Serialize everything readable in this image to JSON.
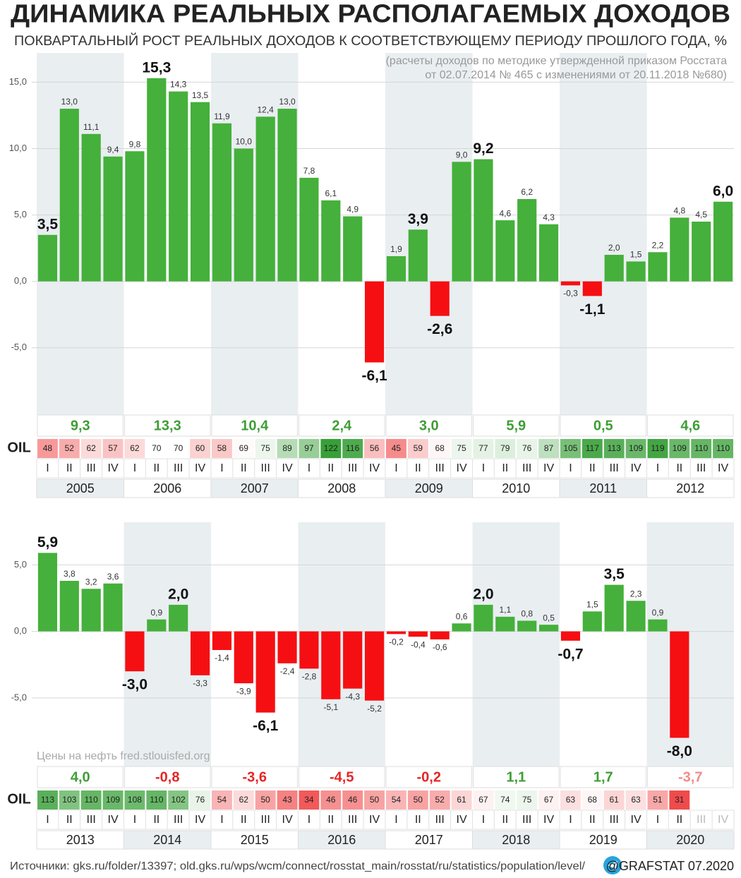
{
  "chart_data": [
    {
      "type": "bar",
      "title": "ДИНАМИКА РЕАЛЬНЫХ РАСПОЛАГАЕМЫХ ДОХОДОВ",
      "subtitle": "ПОКВАРТАЛЬНЫЙ РОСТ РЕАЛЬНЫХ ДОХОДОВ К СООТВЕТСТВУЮЩЕМУ ПЕРИОДУ ПРОШЛОГО ГОДА, %",
      "note": [
        "(расчеты доходов по методике утвержденной приказом Росстата",
        "от 02.07.2014 № 465 с изменениями от 20.11.2018 №680)"
      ],
      "years": [
        "2005",
        "2006",
        "2007",
        "2008",
        "2009",
        "2010",
        "2011",
        "2012"
      ],
      "categories": [
        "I",
        "II",
        "III",
        "IV",
        "I",
        "II",
        "III",
        "IV",
        "I",
        "II",
        "III",
        "IV",
        "I",
        "II",
        "III",
        "IV",
        "I",
        "II",
        "III",
        "IV",
        "I",
        "II",
        "III",
        "IV",
        "I",
        "II",
        "III",
        "IV",
        "I",
        "II",
        "III",
        "IV"
      ],
      "values": [
        3.5,
        13.0,
        11.1,
        9.4,
        9.8,
        15.3,
        14.3,
        13.5,
        11.9,
        10.0,
        12.4,
        13.0,
        7.8,
        6.1,
        4.9,
        -6.1,
        1.9,
        3.9,
        -2.6,
        9.0,
        9.2,
        4.6,
        6.2,
        4.3,
        -0.3,
        -1.1,
        2.0,
        1.5,
        2.2,
        4.8,
        4.5,
        6.0
      ],
      "value_labels": [
        "3,5",
        "13,0",
        "11,1",
        "9,4",
        "9,8",
        "15,3",
        "14,3",
        "13,5",
        "11,9",
        "10,0",
        "12,4",
        "13,0",
        "7,8",
        "6,1",
        "4,9",
        "-6,1",
        "1,9",
        "3,9",
        "-2,6",
        "9,0",
        "9,2",
        "4,6",
        "6,2",
        "4,3",
        "-0,3",
        "-1,1",
        "2,0",
        "1,5",
        "2,2",
        "4,8",
        "4,5",
        "6,0"
      ],
      "large_value_labels": [
        0,
        5,
        15,
        17,
        18,
        20,
        25,
        31
      ],
      "color": "#45b03b",
      "negative_color": "#f50f12",
      "annual_values": [
        9.3,
        13.3,
        10.4,
        2.4,
        3.0,
        5.9,
        0.5,
        4.6
      ],
      "annual_value_labels": [
        "9,3",
        "13,3",
        "10,4",
        "2,4",
        "3,0",
        "5,9",
        "0,5",
        "4,6"
      ],
      "oil_label": "OIL",
      "oil_prices": [
        48,
        52,
        62,
        57,
        62,
        70,
        70,
        60,
        58,
        69,
        75,
        89,
        97,
        122,
        116,
        56,
        45,
        59,
        68,
        75,
        77,
        79,
        76,
        87,
        105,
        117,
        113,
        109,
        119,
        109,
        110,
        110
      ],
      "ylim": [
        -9.9,
        17.2
      ],
      "yticks": [
        {
          "value": -5,
          "label": "-5,0"
        },
        {
          "value": 0,
          "label": "0,0"
        },
        {
          "value": 5,
          "label": "5,0"
        },
        {
          "value": 10,
          "label": "10,0"
        },
        {
          "value": 15,
          "label": "15,0"
        }
      ],
      "grid": true
    },
    {
      "type": "bar",
      "oil_source": "Цены на нефть fred.stlouisfed.org",
      "years": [
        "2013",
        "2014",
        "2015",
        "2016",
        "2017",
        "2018",
        "2019",
        "2020"
      ],
      "categories": [
        "I",
        "II",
        "III",
        "IV",
        "I",
        "II",
        "III",
        "IV",
        "I",
        "II",
        "III",
        "IV",
        "I",
        "II",
        "III",
        "IV",
        "I",
        "II",
        "III",
        "IV",
        "I",
        "II",
        "III",
        "IV",
        "I",
        "II",
        "III",
        "IV",
        "I",
        "II",
        "III",
        "IV"
      ],
      "values": [
        5.9,
        3.8,
        3.2,
        3.6,
        -3.0,
        0.9,
        2.0,
        -3.3,
        -1.4,
        -3.9,
        -6.1,
        -2.4,
        -2.8,
        -5.1,
        -4.3,
        -5.2,
        -0.2,
        -0.4,
        -0.6,
        0.6,
        2.0,
        1.1,
        0.8,
        0.5,
        -0.7,
        1.5,
        3.5,
        2.3,
        0.9,
        -8.0,
        null,
        null
      ],
      "value_labels": [
        "5,9",
        "3,8",
        "3,2",
        "3,6",
        "-3,0",
        "0,9",
        "2,0",
        "-3,3",
        "-1,4",
        "-3,9",
        "-6,1",
        "-2,4",
        "-2,8",
        "-5,1",
        "-4,3",
        "-5,2",
        "-0,2",
        "-0,4",
        "-0,6",
        "0,6",
        "2,0",
        "1,1",
        "0,8",
        "0,5",
        "-0,7",
        "1,5",
        "3,5",
        "2,3",
        "0,9",
        "-8,0",
        null,
        null
      ],
      "large_value_labels": [
        0,
        4,
        6,
        10,
        20,
        24,
        26,
        29
      ],
      "color": "#45b03b",
      "negative_color": "#f50f12",
      "annual_values": [
        4.0,
        -0.8,
        -3.6,
        -4.5,
        -0.2,
        1.1,
        1.7,
        -3.7
      ],
      "annual_value_labels": [
        "4,0",
        "-0,8",
        "-3,6",
        "-4,5",
        "-0,2",
        "1,1",
        "1,7",
        "-3,7"
      ],
      "oil_label": "OIL",
      "oil_prices": [
        113,
        103,
        110,
        109,
        108,
        110,
        102,
        76,
        54,
        62,
        50,
        43,
        34,
        46,
        46,
        50,
        54,
        50,
        52,
        61,
        67,
        74,
        75,
        67,
        63,
        68,
        61,
        63,
        51,
        31,
        null,
        null
      ],
      "ylim": [
        -10.1,
        8.2
      ],
      "yticks": [
        {
          "value": -5,
          "label": "-5,0"
        },
        {
          "value": 0,
          "label": "0,0"
        },
        {
          "value": 5,
          "label": "5,0"
        }
      ],
      "grid": true
    }
  ],
  "footer": {
    "sources": "Источники: gks.ru/folder/13397; old.gks.ru/wps/wcm/connect/rosstat_main/rosstat/ru/statistics/population/level/",
    "credit": "@GRAFSTAT 07.2020"
  }
}
